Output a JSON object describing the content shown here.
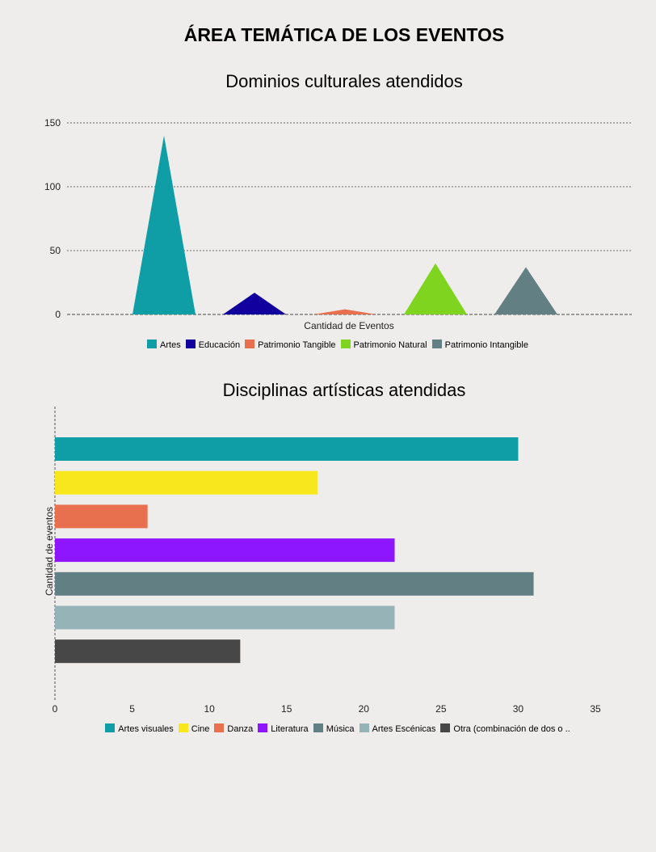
{
  "title": "ÁREA TEMÁTICA DE LOS EVENTOS",
  "chart_data": [
    {
      "type": "area",
      "title": "Dominios culturales atendidos",
      "xlabel": "Cantidad de Eventos",
      "ylabel": "",
      "ylim": [
        0,
        150
      ],
      "yticks": [
        "0",
        "50",
        "100",
        "150"
      ],
      "grid": true,
      "legend": "bottom",
      "categories": [
        "Artes",
        "Educación",
        "Patrimonio Tangible",
        "Patrimonio Natural",
        "Patrimonio Intangible"
      ],
      "values": [
        140,
        17,
        4,
        40,
        37
      ],
      "colors": [
        "#0f9ea5",
        "#12009e",
        "#e8704f",
        "#7fd41f",
        "#627f83"
      ]
    },
    {
      "type": "bar",
      "orientation": "horizontal",
      "title": "Disciplinas artísticas atendidas",
      "xlabel": "",
      "ylabel": "Cantidad de eventos",
      "xlim": [
        0,
        35
      ],
      "xticks": [
        "0",
        "5",
        "10",
        "15",
        "20",
        "25",
        "30",
        "35"
      ],
      "legend": "bottom",
      "categories": [
        "Artes visuales",
        "Cine",
        "Danza",
        "Literatura",
        "Música",
        "Artes Escénicas",
        "Otra (combinación de dos o .."
      ],
      "values": [
        30,
        17,
        6,
        22,
        31,
        22,
        12
      ],
      "colors": [
        "#0f9ea5",
        "#f8e71c",
        "#e8704f",
        "#8e16ff",
        "#627f83",
        "#96b3b7",
        "#474747"
      ]
    }
  ]
}
